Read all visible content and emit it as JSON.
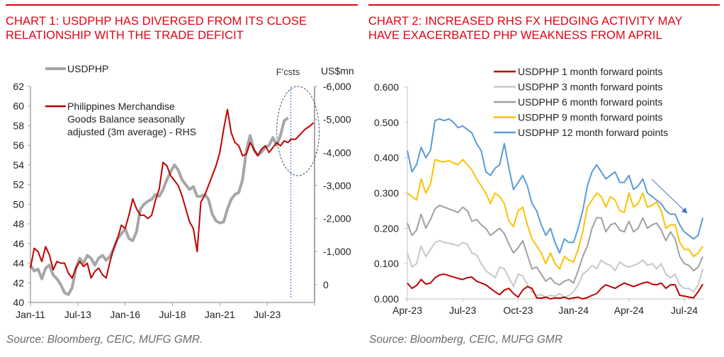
{
  "chart_data": [
    {
      "type": "line",
      "title": "CHART 1: USDPHP HAS DIVERGED FROM ITS CLOSE RELATIONSHIP WITH THE TRADE DEFICIT",
      "source": "Source: Bloomberg, CEIC, MUFG GMR.",
      "xlabel": "",
      "ylabel": "",
      "y2label": "US$mn",
      "xlim": [
        "Jan-11",
        "Dec-25"
      ],
      "x_ticks": [
        "Jan-11",
        "Jul-13",
        "Jan-16",
        "Jul-18",
        "Jan-21",
        "Jul-23"
      ],
      "ylim": [
        40,
        62
      ],
      "y_ticks": [
        "40",
        "42",
        "44",
        "46",
        "48",
        "50",
        "52",
        "54",
        "56",
        "58",
        "60",
        "62"
      ],
      "y2lim": [
        540,
        -6000
      ],
      "y2_ticks": [
        "0",
        "-1,000",
        "-2,000",
        "-3,000",
        "-4,000",
        "-5,000",
        "-6,000"
      ],
      "annotation_forecast": "F'csts",
      "forecast_start": 2024.75,
      "legend": [
        "USDPHP",
        "Philippines Merchandise Goods Balance seasonally adjusted (3m average) - RHS"
      ],
      "series": [
        {
          "name": "USDPHP",
          "axis": "left",
          "color": "#a6a6a6",
          "x": [
            2011.0,
            2011.2,
            2011.4,
            2011.6,
            2011.8,
            2012.0,
            2012.2,
            2012.4,
            2012.6,
            2012.8,
            2013.0,
            2013.2,
            2013.4,
            2013.6,
            2013.8,
            2014.0,
            2014.2,
            2014.4,
            2014.6,
            2014.8,
            2015.0,
            2015.2,
            2015.4,
            2015.6,
            2015.8,
            2016.0,
            2016.2,
            2016.4,
            2016.6,
            2016.8,
            2017.0,
            2017.2,
            2017.4,
            2017.6,
            2017.8,
            2018.0,
            2018.2,
            2018.4,
            2018.6,
            2018.8,
            2019.0,
            2019.2,
            2019.4,
            2019.6,
            2019.8,
            2020.0,
            2020.2,
            2020.4,
            2020.6,
            2020.8,
            2021.0,
            2021.2,
            2021.4,
            2021.6,
            2021.8,
            2022.0,
            2022.2,
            2022.4,
            2022.6,
            2022.8,
            2023.0,
            2023.2,
            2023.4,
            2023.6,
            2023.8,
            2024.0,
            2024.2,
            2024.4,
            2024.6
          ],
          "values": [
            43.8,
            43.2,
            43.4,
            42.4,
            43.5,
            43.8,
            42.8,
            42.4,
            41.8,
            41.0,
            40.8,
            41.5,
            43.5,
            44.5,
            44.0,
            44.8,
            44.5,
            43.8,
            44.5,
            44.8,
            44.3,
            44.7,
            45.5,
            46.5,
            47.0,
            47.5,
            46.5,
            46.3,
            47.2,
            49.5,
            50.0,
            50.3,
            50.5,
            51.0,
            50.8,
            51.5,
            52.5,
            53.3,
            54.0,
            53.5,
            52.5,
            52.0,
            51.5,
            51.8,
            50.8,
            50.8,
            51.0,
            50.5,
            49.0,
            48.3,
            48.1,
            48.2,
            49.5,
            50.5,
            51.0,
            51.2,
            52.5,
            55.5,
            57.0,
            55.5,
            55.0,
            55.3,
            55.8,
            56.0,
            56.8,
            56.0,
            57.0,
            58.5,
            58.8
          ]
        },
        {
          "name": "Philippines Merchandise Goods Balance seasonally adjusted (3m average) - RHS",
          "axis": "right",
          "color": "#c00000",
          "x": [
            2011.0,
            2011.2,
            2011.4,
            2011.6,
            2011.8,
            2012.0,
            2012.2,
            2012.4,
            2012.6,
            2012.8,
            2013.0,
            2013.2,
            2013.4,
            2013.6,
            2013.8,
            2014.0,
            2014.2,
            2014.4,
            2014.6,
            2014.8,
            2015.0,
            2015.2,
            2015.4,
            2015.6,
            2015.8,
            2016.0,
            2016.2,
            2016.4,
            2016.6,
            2016.8,
            2017.0,
            2017.2,
            2017.4,
            2017.6,
            2017.8,
            2018.0,
            2018.2,
            2018.4,
            2018.6,
            2018.8,
            2019.0,
            2019.2,
            2019.4,
            2019.6,
            2019.8,
            2020.0,
            2020.2,
            2020.4,
            2020.6,
            2020.8,
            2021.0,
            2021.2,
            2021.4,
            2021.6,
            2021.8,
            2022.0,
            2022.2,
            2022.4,
            2022.6,
            2022.8,
            2023.0,
            2023.2,
            2023.4,
            2023.6,
            2023.8,
            2024.0,
            2024.2,
            2024.4,
            2024.6,
            2024.75,
            2025.0,
            2025.25,
            2025.5,
            2025.75,
            2025.95
          ],
          "values": [
            -500,
            -1100,
            -1000,
            -700,
            -1150,
            -900,
            -450,
            -700,
            -650,
            -650,
            -350,
            -200,
            -500,
            -700,
            -550,
            -650,
            -200,
            -400,
            -500,
            -300,
            -200,
            -700,
            -1100,
            -1400,
            -1800,
            -1700,
            -2100,
            -2600,
            -2300,
            -2100,
            -2100,
            -2000,
            -2100,
            -2550,
            -2900,
            -3700,
            -3600,
            -3300,
            -3150,
            -3000,
            -2700,
            -2300,
            -1900,
            -1700,
            -1000,
            -2500,
            -2700,
            -3000,
            -3300,
            -3600,
            -4000,
            -4700,
            -5300,
            -4600,
            -4300,
            -4200,
            -3900,
            -3950,
            -4300,
            -4100,
            -3900,
            -4100,
            -4200,
            -4000,
            -4150,
            -4300,
            -4200,
            -4350,
            -4300,
            -4400,
            -4400,
            -4550,
            -4700,
            -4800,
            -4900
          ]
        }
      ]
    },
    {
      "type": "line",
      "title": "CHART 2: INCREASED RHS FX HEDGING ACTIVITY MAY HAVE EXACERBATED PHP WEAKNESS FROM APRIL",
      "source": "Source: Bloomberg, CEIC, MUFG GMR",
      "xlabel": "",
      "ylabel": "",
      "xlim": [
        "Apr-23",
        "Aug-24"
      ],
      "x_ticks": [
        "Apr-23",
        "Jul-23",
        "Oct-23",
        "Jan-24",
        "Apr-24",
        "Jul-24"
      ],
      "ylim": [
        0,
        0.6
      ],
      "y_ticks": [
        "0.000",
        "0.100",
        "0.200",
        "0.300",
        "0.400",
        "0.500",
        "0.600"
      ],
      "legend": [
        "USDPHP 1 month forward points",
        "USDPHP 3 month forward points",
        "USDPHP 6 month forward points",
        "USDPHP 9 month forward points",
        "USDPHP 12 month forward points"
      ],
      "annotation": "downward arrow from mid-May 2024 to early Jul 2024 above 12m line",
      "x_months_since_apr23": [
        0,
        0.25,
        0.5,
        0.75,
        1,
        1.25,
        1.5,
        1.75,
        2,
        2.25,
        2.5,
        2.75,
        3,
        3.25,
        3.5,
        3.75,
        4,
        4.25,
        4.5,
        4.75,
        5,
        5.25,
        5.5,
        5.75,
        6,
        6.25,
        6.5,
        6.75,
        7,
        7.25,
        7.5,
        7.75,
        8,
        8.25,
        8.5,
        8.75,
        9,
        9.25,
        9.5,
        9.75,
        10,
        10.25,
        10.5,
        10.75,
        11,
        11.25,
        11.5,
        11.75,
        12,
        12.25,
        12.5,
        12.75,
        13,
        13.25,
        13.5,
        13.75,
        14,
        14.25,
        14.5,
        14.75,
        15,
        15.25,
        15.5,
        15.75,
        16
      ],
      "series": [
        {
          "name": "USDPHP 1 month forward points",
          "color": "#c00000",
          "values": [
            0.045,
            0.03,
            0.038,
            0.055,
            0.042,
            0.045,
            0.06,
            0.068,
            0.07,
            0.066,
            0.062,
            0.058,
            0.055,
            0.06,
            0.062,
            0.05,
            0.045,
            0.04,
            0.03,
            0.02,
            0.012,
            0.025,
            0.03,
            0.015,
            0.005,
            0.025,
            0.035,
            0.03,
            0.003,
            0.002,
            0.005,
            0.0,
            0.003,
            0.002,
            0.005,
            0.0,
            0.003,
            0.005,
            0.0,
            0.004,
            0.01,
            0.015,
            0.03,
            0.04,
            0.035,
            0.03,
            0.038,
            0.045,
            0.04,
            0.035,
            0.04,
            0.045,
            0.048,
            0.042,
            0.04,
            0.045,
            0.03,
            0.04,
            0.04,
            0.01,
            0.008,
            0.005,
            0.003,
            0.02,
            0.042
          ]
        },
        {
          "name": "USDPHP 3 month forward points",
          "color": "#c8c8c8",
          "values": [
            0.13,
            0.09,
            0.1,
            0.15,
            0.12,
            0.14,
            0.16,
            0.165,
            0.16,
            0.158,
            0.155,
            0.15,
            0.16,
            0.155,
            0.13,
            0.125,
            0.1,
            0.08,
            0.07,
            0.06,
            0.09,
            0.085,
            0.06,
            0.035,
            0.07,
            0.065,
            0.04,
            0.02,
            0.01,
            0.012,
            0.005,
            0.01,
            0.008,
            0.015,
            0.005,
            0.01,
            0.02,
            0.04,
            0.07,
            0.08,
            0.095,
            0.085,
            0.11,
            0.1,
            0.095,
            0.08,
            0.105,
            0.095,
            0.09,
            0.095,
            0.1,
            0.11,
            0.095,
            0.1,
            0.085,
            0.1,
            0.07,
            0.06,
            0.07,
            0.04,
            0.03,
            0.03,
            0.02,
            0.04,
            0.085
          ]
        },
        {
          "name": "USDPHP 6 month forward points",
          "color": "#a0a0a0",
          "values": [
            0.215,
            0.18,
            0.195,
            0.24,
            0.2,
            0.225,
            0.255,
            0.265,
            0.26,
            0.255,
            0.25,
            0.245,
            0.26,
            0.25,
            0.22,
            0.225,
            0.21,
            0.2,
            0.18,
            0.19,
            0.2,
            0.185,
            0.155,
            0.13,
            0.145,
            0.165,
            0.125,
            0.085,
            0.09,
            0.07,
            0.05,
            0.06,
            0.045,
            0.04,
            0.05,
            0.055,
            0.045,
            0.08,
            0.12,
            0.15,
            0.2,
            0.23,
            0.23,
            0.19,
            0.21,
            0.215,
            0.195,
            0.19,
            0.22,
            0.19,
            0.2,
            0.23,
            0.2,
            0.21,
            0.215,
            0.195,
            0.165,
            0.19,
            0.17,
            0.12,
            0.1,
            0.095,
            0.08,
            0.09,
            0.12
          ]
        },
        {
          "name": "USDPHP 9 month forward points",
          "color": "#ffc000",
          "values": [
            0.3,
            0.29,
            0.28,
            0.34,
            0.3,
            0.325,
            0.395,
            0.39,
            0.388,
            0.392,
            0.385,
            0.38,
            0.395,
            0.38,
            0.365,
            0.34,
            0.32,
            0.3,
            0.27,
            0.3,
            0.29,
            0.27,
            0.22,
            0.205,
            0.25,
            0.26,
            0.21,
            0.17,
            0.15,
            0.13,
            0.1,
            0.13,
            0.1,
            0.085,
            0.12,
            0.11,
            0.105,
            0.14,
            0.19,
            0.26,
            0.28,
            0.3,
            0.29,
            0.26,
            0.29,
            0.28,
            0.25,
            0.245,
            0.3,
            0.26,
            0.27,
            0.3,
            0.26,
            0.265,
            0.275,
            0.25,
            0.2,
            0.21,
            0.21,
            0.16,
            0.14,
            0.14,
            0.12,
            0.13,
            0.15
          ]
        },
        {
          "name": "USDPHP 12 month forward points",
          "color": "#5b9bd5",
          "values": [
            0.42,
            0.36,
            0.38,
            0.43,
            0.4,
            0.42,
            0.505,
            0.51,
            0.505,
            0.51,
            0.5,
            0.485,
            0.49,
            0.48,
            0.47,
            0.44,
            0.42,
            0.36,
            0.35,
            0.37,
            0.38,
            0.44,
            0.37,
            0.31,
            0.33,
            0.35,
            0.32,
            0.27,
            0.25,
            0.21,
            0.18,
            0.2,
            0.16,
            0.13,
            0.17,
            0.16,
            0.16,
            0.2,
            0.25,
            0.32,
            0.36,
            0.38,
            0.36,
            0.34,
            0.35,
            0.36,
            0.33,
            0.33,
            0.35,
            0.31,
            0.32,
            0.34,
            0.3,
            0.29,
            0.28,
            0.27,
            0.25,
            0.24,
            0.24,
            0.21,
            0.19,
            0.18,
            0.17,
            0.18,
            0.23
          ]
        }
      ]
    }
  ]
}
